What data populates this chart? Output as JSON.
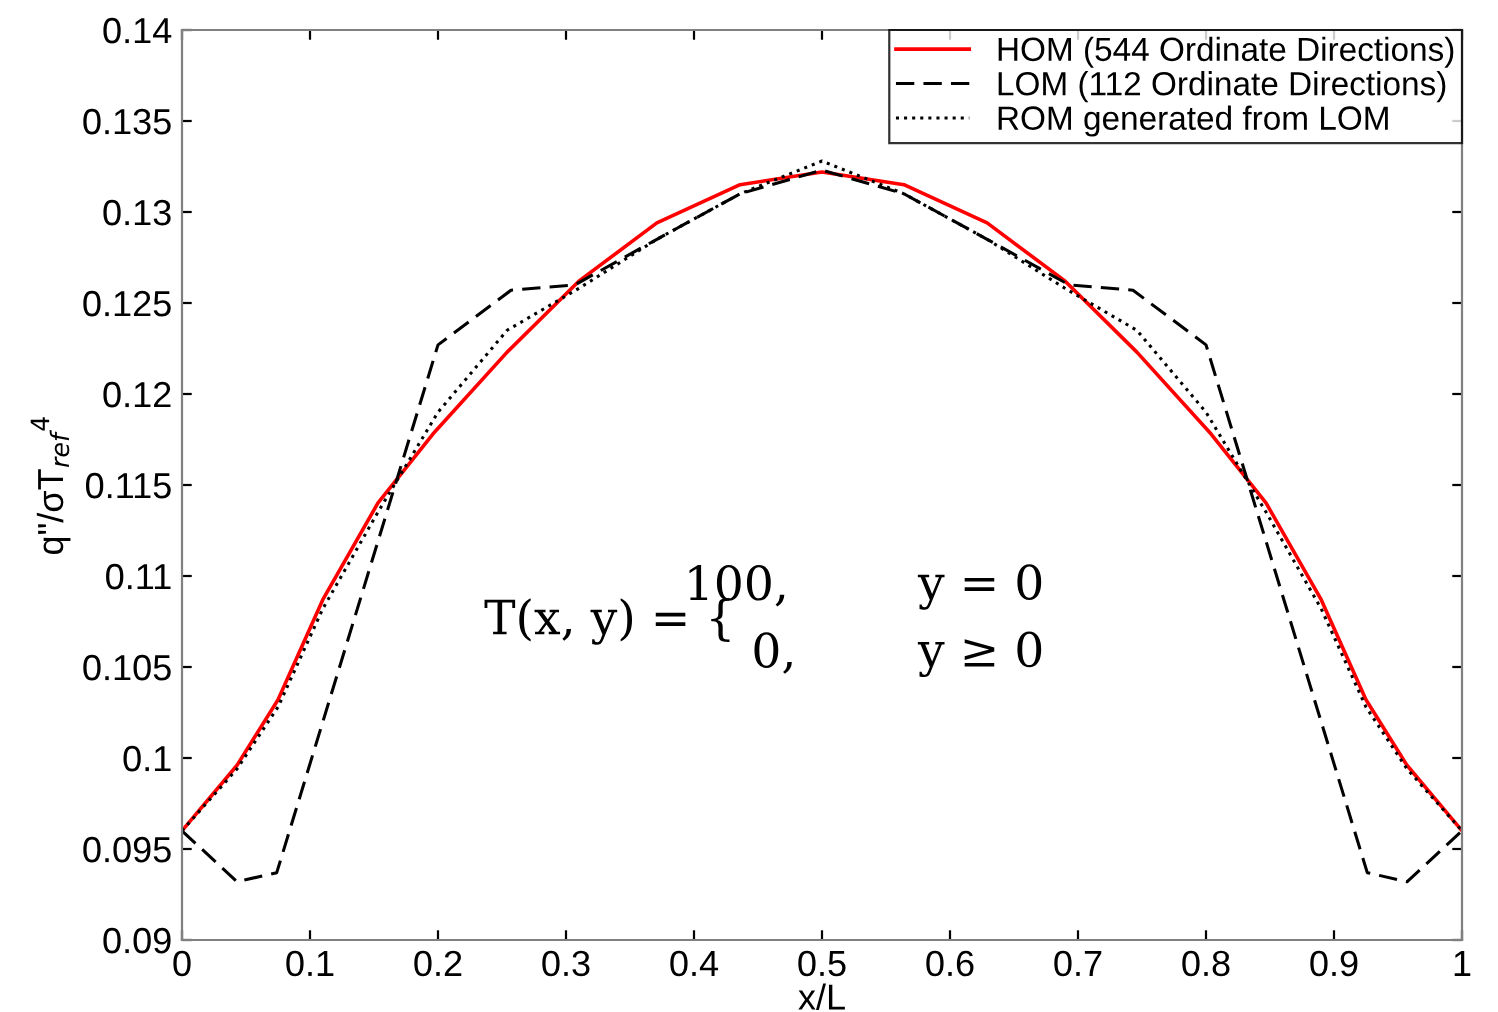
{
  "chart_data": {
    "type": "line",
    "xlabel": "x/L",
    "ylabel": "q\"/σT$_{ref}$$^{4}$",
    "xlim": [
      0,
      1
    ],
    "ylim": [
      0.09,
      0.14
    ],
    "xticks": [
      0,
      0.1,
      0.2,
      0.3,
      0.4,
      0.5,
      0.6,
      0.7,
      0.8,
      0.9,
      1
    ],
    "yticks": [
      0.09,
      0.095,
      0.1,
      0.105,
      0.11,
      0.115,
      0.12,
      0.125,
      0.13,
      0.135,
      0.14
    ],
    "grid": false,
    "legend": "top right",
    "marker": "none",
    "annotations": [
      "T(x, y) = {",
      "100,",
      "y = 0",
      "0,",
      "y ≥ 0"
    ],
    "series": [
      {
        "name": "HOM (544 Ordinate Directions)",
        "color": "#ff0000",
        "line_style": "solid",
        "x": [
          0,
          0.043,
          0.075,
          0.11,
          0.153,
          0.196,
          0.254,
          0.31,
          0.371,
          0.436,
          0.5,
          0.564,
          0.629,
          0.69,
          0.746,
          0.804,
          0.847,
          0.89,
          0.925,
          0.957,
          1
        ],
        "values": [
          0.096,
          0.0996,
          0.1032,
          0.1087,
          0.114,
          0.1178,
          0.1223,
          0.1262,
          0.1294,
          0.1315,
          0.1322,
          0.1315,
          0.1294,
          0.1262,
          0.1223,
          0.1178,
          0.114,
          0.1087,
          0.1032,
          0.0996,
          0.096
        ]
      },
      {
        "name": "LOM (112 Ordinate Directions)",
        "color": "#000000",
        "line_style": "dashed",
        "x": [
          0,
          0.043,
          0.074,
          0.2,
          0.257,
          0.307,
          0.371,
          0.436,
          0.5,
          0.564,
          0.629,
          0.693,
          0.743,
          0.8,
          0.926,
          0.957,
          1
        ],
        "values": [
          0.096,
          0.0932,
          0.0937,
          0.1227,
          0.1257,
          0.126,
          0.1285,
          0.131,
          0.1323,
          0.131,
          0.1285,
          0.126,
          0.1257,
          0.1227,
          0.0937,
          0.0932,
          0.096
        ]
      },
      {
        "name": "ROM generated from LOM",
        "color": "#000000",
        "line_style": "dotted",
        "x": [
          0,
          0.043,
          0.075,
          0.11,
          0.153,
          0.2,
          0.254,
          0.31,
          0.371,
          0.436,
          0.5,
          0.564,
          0.629,
          0.69,
          0.746,
          0.8,
          0.847,
          0.89,
          0.925,
          0.957,
          1
        ],
        "values": [
          0.096,
          0.0994,
          0.1028,
          0.1082,
          0.1135,
          0.119,
          0.1235,
          0.1258,
          0.1285,
          0.131,
          0.1328,
          0.131,
          0.1285,
          0.1258,
          0.1235,
          0.119,
          0.1135,
          0.1082,
          0.1028,
          0.0994,
          0.096
        ]
      }
    ]
  }
}
